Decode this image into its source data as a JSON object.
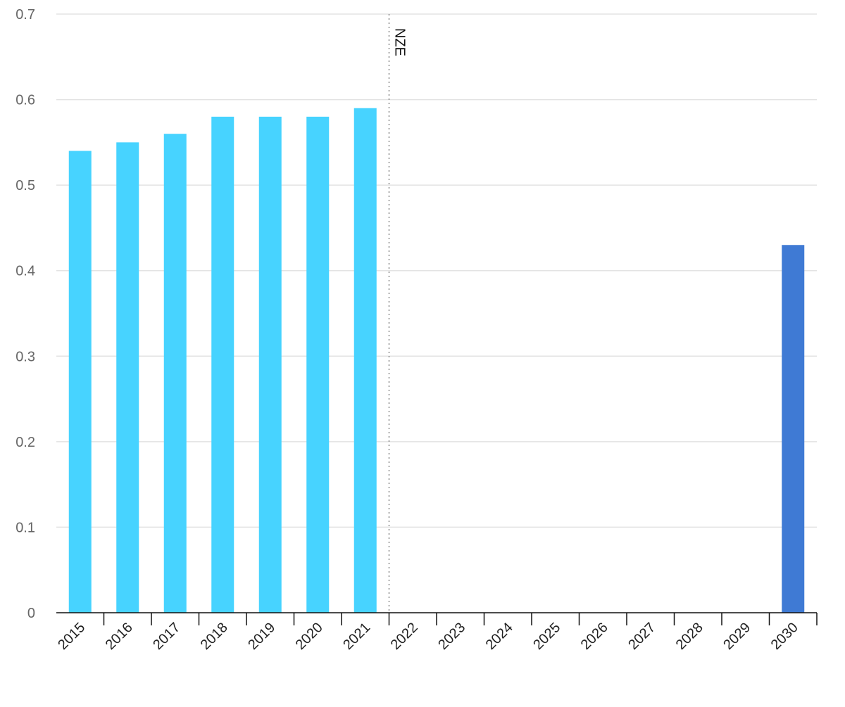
{
  "chart_data": {
    "type": "bar",
    "title": "",
    "xlabel": "",
    "ylabel": "",
    "categories": [
      "2015",
      "2016",
      "2017",
      "2018",
      "2019",
      "2020",
      "2021",
      "2022",
      "2023",
      "2024",
      "2025",
      "2026",
      "2027",
      "2028",
      "2029",
      "2030"
    ],
    "series": [
      {
        "values": [
          0.54,
          0.55,
          0.56,
          0.58,
          0.58,
          0.58,
          0.59,
          null,
          null,
          null,
          null,
          null,
          null,
          null,
          null,
          null
        ],
        "color": "#47d3ff"
      },
      {
        "values": [
          null,
          null,
          null,
          null,
          null,
          null,
          null,
          null,
          null,
          null,
          null,
          null,
          null,
          null,
          null,
          0.43
        ],
        "color": "#3f7ad4"
      }
    ],
    "ylim": [
      0,
      0.7
    ],
    "yticks": [
      "0",
      "0.1",
      "0.2",
      "0.3",
      "0.4",
      "0.5",
      "0.6",
      "0.7"
    ],
    "grid": true,
    "annotations": [
      {
        "label": "NZE",
        "at_category": "2022",
        "style": "dotted-vertical-line"
      }
    ]
  }
}
